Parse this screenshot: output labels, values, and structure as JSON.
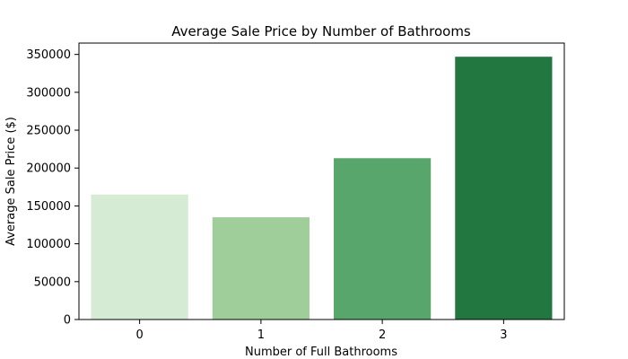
{
  "chart_data": {
    "type": "bar",
    "title": "Average Sale Price by Number of Bathrooms",
    "xlabel": "Number of Full Bathrooms",
    "ylabel": "Average Sale Price ($)",
    "categories": [
      "0",
      "1",
      "2",
      "3"
    ],
    "values": [
      165000,
      135000,
      213000,
      347000
    ],
    "ylim": [
      0,
      365000
    ],
    "yticks": [
      0,
      50000,
      100000,
      150000,
      200000,
      250000,
      300000,
      350000
    ],
    "ytick_labels": [
      "0",
      "50000",
      "100000",
      "150000",
      "200000",
      "250000",
      "300000",
      "350000"
    ],
    "colors": [
      "#d5ebd4",
      "#a0ce9b",
      "#58a66b",
      "#227640"
    ],
    "grid": false,
    "legend": "none"
  }
}
